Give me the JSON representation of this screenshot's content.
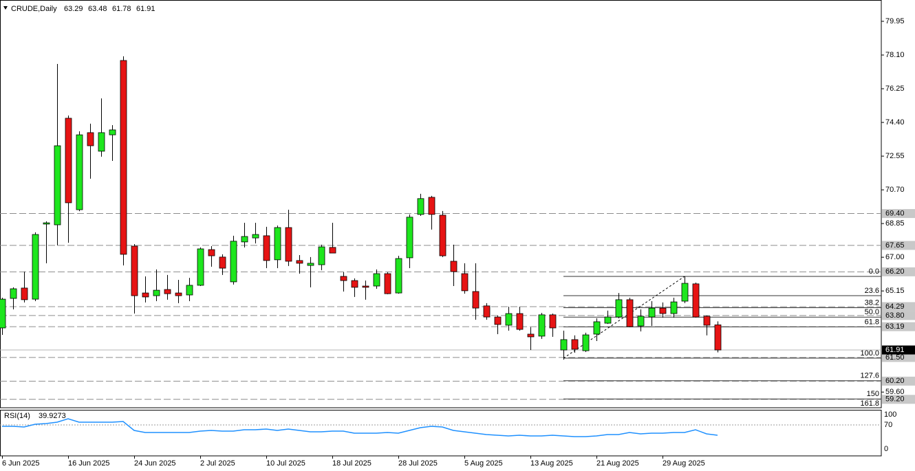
{
  "chart_data": {
    "type": "candlestick",
    "title": "CRUDE,Daily",
    "categories": [
      "6 Jun 2025",
      null,
      null,
      null,
      null,
      null,
      "16 Jun 2025",
      null,
      null,
      null,
      null,
      null,
      "24 Jun 2025",
      null,
      null,
      null,
      null,
      null,
      "2 Jul 2025",
      null,
      null,
      null,
      null,
      null,
      "10 Jul 2025",
      null,
      null,
      null,
      null,
      null,
      "18 Jul 2025",
      null,
      null,
      null,
      null,
      null,
      "28 Jul 2025",
      null,
      null,
      null,
      null,
      null,
      "5 Aug 2025",
      null,
      null,
      null,
      null,
      null,
      "13 Aug 2025",
      null,
      null,
      null,
      null,
      null,
      "21 Aug 2025",
      null,
      null,
      null,
      null,
      null,
      "29 Aug 2025",
      null,
      null,
      null,
      null,
      null
    ],
    "open": [
      63.12,
      64.74,
      65.31,
      64.7,
      68.82,
      68.78,
      74.63,
      69.61,
      73.84,
      72.82,
      73.72,
      77.8,
      67.61,
      65.04,
      64.89,
      65.23,
      65.04,
      64.93,
      65.46,
      67.42,
      67.01,
      65.65,
      67.84,
      68.06,
      68.18,
      66.86,
      68.63,
      66.82,
      66.55,
      66.59,
      67.54,
      65.95,
      65.72,
      65.42,
      65.42,
      66.1,
      65.04,
      66.97,
      69.35,
      70.29,
      69.31,
      66.78,
      66.1,
      65.12,
      64.33,
      63.72,
      63.27,
      63.91,
      62.78,
      62.67,
      63.84,
      61.91,
      62.48,
      61.87,
      62.78,
      63.38,
      63.72,
      64.67,
      63.23,
      63.72,
      64.21,
      63.91,
      64.59,
      65.54,
      63.76,
      63.29
    ],
    "high": [
      64.78,
      65.35,
      66.21,
      68.37,
      68.97,
      77.61,
      74.78,
      73.91,
      74.33,
      75.72,
      74.25,
      78.03,
      67.72,
      65.95,
      66.33,
      66.03,
      65.76,
      65.87,
      67.54,
      67.61,
      67.16,
      68.18,
      68.89,
      68.89,
      68.67,
      68.74,
      69.61,
      67.12,
      67.01,
      67.69,
      68.89,
      66.18,
      65.84,
      65.72,
      66.33,
      66.18,
      67.08,
      69.35,
      70.48,
      70.37,
      69.54,
      67.69,
      66.67,
      66.67,
      64.48,
      63.8,
      64.29,
      64.29,
      63.16,
      63.95,
      63.91,
      62.97,
      62.71,
      62.86,
      63.65,
      64.07,
      65.04,
      64.78,
      64.14,
      64.59,
      64.52,
      64.78,
      65.95,
      65.61,
      63.8,
      63.48
    ],
    "low": [
      62.74,
      64.14,
      64.52,
      64.59,
      66.67,
      67.65,
      67.8,
      69.53,
      71.31,
      72.52,
      72.29,
      66.55,
      63.91,
      64.52,
      64.59,
      64.67,
      64.48,
      64.59,
      65.42,
      66.48,
      66.03,
      65.5,
      67.54,
      67.76,
      66.4,
      66.4,
      66.52,
      66.1,
      65.35,
      66.29,
      67.23,
      65.12,
      64.82,
      64.67,
      65.27,
      64.97,
      65.0,
      66.4,
      69.27,
      68.52,
      67.01,
      65.42,
      65.0,
      63.57,
      63.57,
      62.78,
      62.97,
      62.97,
      61.91,
      62.52,
      62.63,
      61.38,
      61.76,
      61.8,
      62.4,
      63.34,
      63.65,
      63.16,
      62.93,
      63.23,
      63.69,
      63.69,
      64.48,
      63.69,
      62.71,
      61.78
    ],
    "close": [
      64.7,
      65.27,
      64.67,
      68.25,
      68.89,
      73.12,
      69.99,
      73.72,
      73.12,
      73.84,
      73.99,
      67.16,
      64.89,
      64.82,
      65.19,
      65.0,
      64.89,
      65.46,
      67.46,
      67.08,
      66.4,
      67.88,
      68.14,
      68.25,
      66.82,
      68.63,
      66.78,
      66.67,
      66.67,
      67.57,
      67.23,
      65.72,
      65.35,
      65.35,
      66.1,
      65.0,
      66.93,
      69.2,
      70.22,
      69.35,
      67.08,
      66.21,
      65.16,
      64.21,
      63.72,
      63.31,
      63.91,
      63.04,
      62.63,
      63.84,
      63.12,
      62.48,
      61.95,
      62.74,
      63.46,
      63.72,
      64.67,
      63.19,
      63.76,
      64.21,
      63.91,
      64.55,
      65.57,
      63.72,
      63.27,
      61.91
    ],
    "up_color": "#1ee61e",
    "down_color": "#e61414",
    "ylim": [
      58.74,
      81.12
    ],
    "yticks": [
      79.95,
      {
        "value": 78.1,
        "label": "78.10"
      },
      76.25,
      {
        "value": 74.4,
        "label": "74.40"
      },
      72.55,
      {
        "value": 70.7,
        "label": "70.70"
      },
      68.85,
      {
        "value": 67,
        "label": "67.00"
      },
      65.15,
      {
        "value": 59.6,
        "label": "59.60"
      }
    ],
    "levels": [
      {
        "value": 69.4,
        "label": "69.40"
      },
      67.65,
      {
        "value": 66.2,
        "label": "66.20"
      },
      64.29,
      {
        "value": 63.8,
        "label": "63.80"
      },
      63.19,
      {
        "value": 61.5,
        "label": "61.50"
      },
      {
        "value": 60.2,
        "label": "60.20"
      },
      {
        "value": 59.2,
        "label": "59.20"
      }
    ],
    "fib": [
      {
        "label": "0.0",
        "price": 65.95
      },
      {
        "label": "23.6",
        "price": 64.89
      },
      {
        "label": "38.2",
        "price": 64.23
      },
      {
        "label": "50.0",
        "price": 63.71
      },
      {
        "label": "61.8",
        "price": 63.18
      },
      {
        "label": "100.0",
        "price": 61.46
      },
      {
        "label": "127.6",
        "price": 60.22
      },
      {
        "label": "150",
        "price": 59.22
      },
      {
        "label": "161.8",
        "price": 58.69
      }
    ],
    "rsi": {
      "title": "RSI(14)",
      "color": "#1e90ff",
      "ylim": [
        0,
        100
      ],
      "yticks": [
        100,
        70,
        0
      ],
      "values": [
        66,
        66,
        64,
        72,
        74,
        78,
        88,
        78,
        78,
        78,
        78,
        80,
        54,
        48,
        48,
        48,
        48,
        48,
        52,
        54,
        52,
        52,
        56,
        56,
        58,
        54,
        58,
        54,
        50,
        50,
        52,
        52,
        46,
        46,
        46,
        48,
        46,
        54,
        62,
        66,
        64,
        54,
        50,
        46,
        42,
        40,
        38,
        40,
        38,
        38,
        40,
        38,
        36,
        36,
        38,
        42,
        42,
        48,
        44,
        46,
        46,
        48,
        48,
        56,
        44,
        39.9273
      ]
    }
  }
}
